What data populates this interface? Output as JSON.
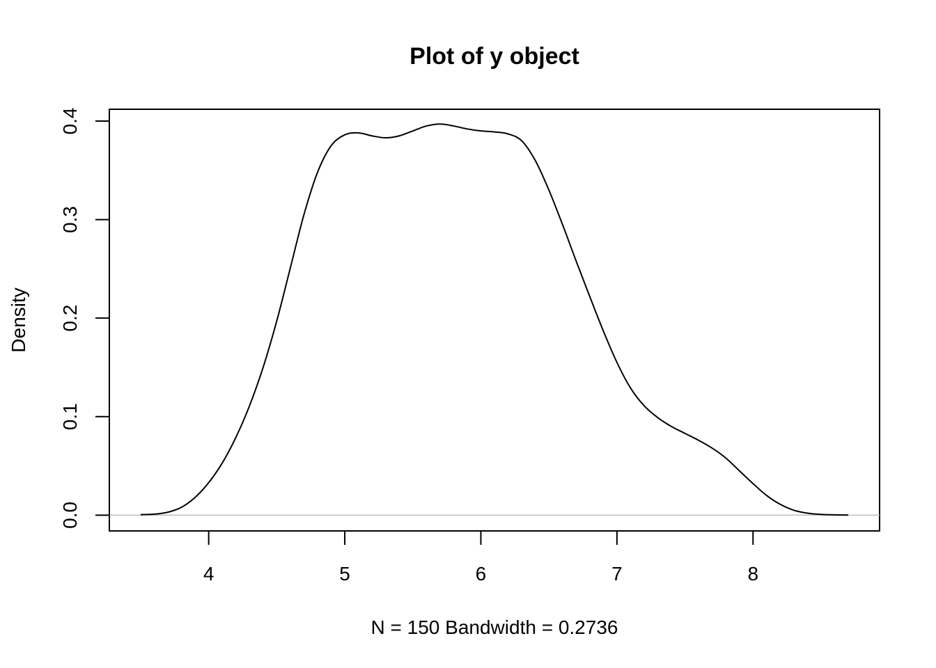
{
  "chart_data": {
    "type": "line",
    "title": "Plot of y object",
    "xlabel": "N = 150   Bandwidth = 0.2736",
    "ylabel": "Density",
    "xlim": [
      3.27,
      8.93
    ],
    "ylim": [
      -0.016,
      0.412
    ],
    "x_ticks": [
      "4",
      "5",
      "6",
      "7",
      "8"
    ],
    "y_ticks": [
      "0.0",
      "0.1",
      "0.2",
      "0.3",
      "0.4"
    ],
    "x_tick_values": [
      4,
      5,
      6,
      7,
      8
    ],
    "y_tick_values": [
      0.0,
      0.1,
      0.2,
      0.3,
      0.4
    ],
    "grid": false,
    "legend": "none",
    "baseline": 0,
    "series": [
      {
        "x": [
          3.5,
          3.6,
          3.7,
          3.8,
          3.9,
          4.0,
          4.1,
          4.2,
          4.3,
          4.4,
          4.5,
          4.6,
          4.7,
          4.8,
          4.9,
          5.0,
          5.1,
          5.2,
          5.3,
          5.4,
          5.5,
          5.6,
          5.7,
          5.8,
          5.9,
          6.0,
          6.1,
          6.2,
          6.3,
          6.4,
          6.5,
          6.6,
          6.7,
          6.8,
          6.9,
          7.0,
          7.1,
          7.2,
          7.3,
          7.4,
          7.5,
          7.6,
          7.7,
          7.8,
          7.9,
          8.0,
          8.1,
          8.2,
          8.3,
          8.4,
          8.5,
          8.6,
          8.7
        ],
        "y": [
          0.0005,
          0.001,
          0.003,
          0.008,
          0.018,
          0.033,
          0.053,
          0.079,
          0.111,
          0.15,
          0.197,
          0.251,
          0.305,
          0.348,
          0.375,
          0.386,
          0.388,
          0.385,
          0.383,
          0.385,
          0.39,
          0.395,
          0.397,
          0.395,
          0.392,
          0.39,
          0.389,
          0.387,
          0.38,
          0.36,
          0.33,
          0.295,
          0.258,
          0.222,
          0.187,
          0.155,
          0.129,
          0.111,
          0.099,
          0.09,
          0.083,
          0.076,
          0.068,
          0.058,
          0.045,
          0.032,
          0.02,
          0.011,
          0.005,
          0.002,
          0.0008,
          0.0003,
          0.0001
        ]
      }
    ],
    "colors": {
      "line": "#000000",
      "baseline": "#bebebe",
      "frame": "#000000"
    }
  }
}
